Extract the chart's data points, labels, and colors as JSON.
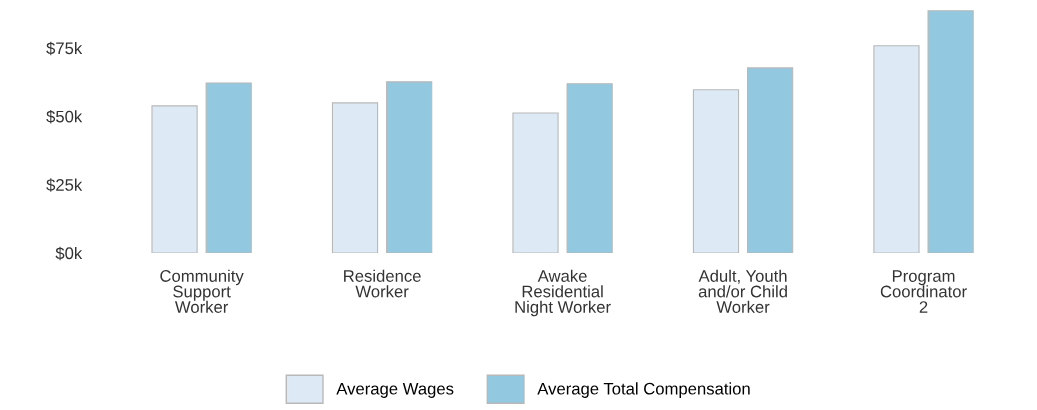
{
  "chart_data": {
    "type": "bar",
    "categories": [
      "Community\nSupport\nWorker",
      "Residence\nWorker",
      "Awake\nResidential\nNight Worker",
      "Adult, Youth\nand/or Child\nWorker",
      "Program\nCoordinator\n2"
    ],
    "series": [
      {
        "name": "Average Wages",
        "color": "#ddeaf6",
        "values": [
          53800,
          54900,
          51200,
          59700,
          75800
        ]
      },
      {
        "name": "Average Total Compensation",
        "color": "#92c9e0",
        "values": [
          62200,
          62600,
          61900,
          67700,
          88600
        ]
      }
    ],
    "ylim": [
      0,
      90000
    ],
    "yticks": [
      {
        "value": 0,
        "label": "$0k"
      },
      {
        "value": 25000,
        "label": "$25k"
      },
      {
        "value": 50000,
        "label": "$50k"
      },
      {
        "value": 75000,
        "label": "$75k"
      }
    ],
    "grid": false,
    "legend": "bottom"
  }
}
